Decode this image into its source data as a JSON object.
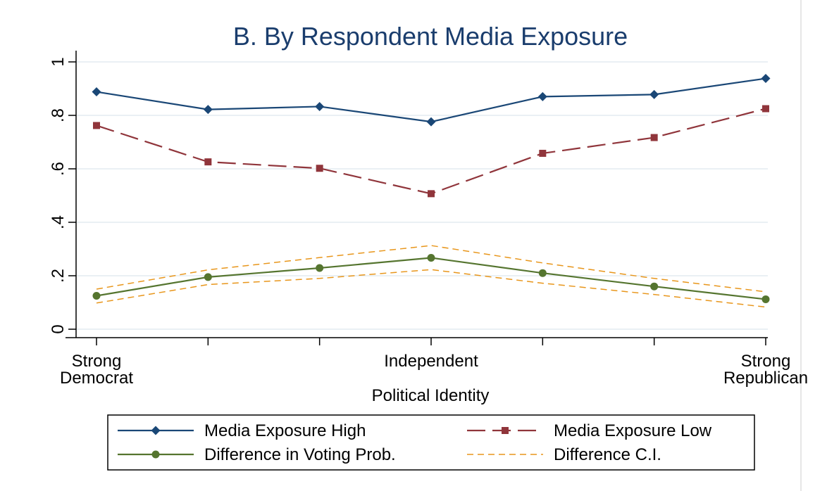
{
  "chart_data": {
    "type": "line",
    "title": "B. By Respondent Media Exposure",
    "xlabel": "Political Identity",
    "ylabel": "",
    "x": [
      1,
      2,
      3,
      4,
      5,
      6,
      7
    ],
    "xlim": [
      1,
      7
    ],
    "x_tick_labels": [
      {
        "x": 1,
        "lines": [
          "Strong",
          "Democrat"
        ]
      },
      {
        "x": 4,
        "lines": [
          "Independent"
        ]
      },
      {
        "x": 7,
        "lines": [
          "Strong",
          "Republican"
        ]
      }
    ],
    "ylim": [
      0,
      1
    ],
    "y_ticks": [
      0,
      0.2,
      0.4,
      0.6,
      0.8,
      1
    ],
    "y_tick_labels": [
      "0",
      ".2",
      ".4",
      ".6",
      ".8",
      "1"
    ],
    "grid": true,
    "legend_placement": "bottom",
    "series": [
      {
        "name": "Media Exposure High",
        "color": "#1a4776",
        "marker": "diamond",
        "dash": "solid",
        "values": [
          0.888,
          0.822,
          0.833,
          0.776,
          0.87,
          0.878,
          0.938
        ]
      },
      {
        "name": "Media Exposure Low",
        "color": "#90353b",
        "marker": "square",
        "dash": "long-dash",
        "values": [
          0.762,
          0.626,
          0.602,
          0.507,
          0.658,
          0.717,
          0.825
        ]
      },
      {
        "name": "Difference in Voting Prob.",
        "color": "#55752f",
        "marker": "circle",
        "dash": "solid",
        "values": [
          0.125,
          0.195,
          0.229,
          0.267,
          0.21,
          0.16,
          0.112
        ]
      },
      {
        "name": "Difference C.I.",
        "color": "#e8961b",
        "marker": "none",
        "dash": "short-dash",
        "values_upper": [
          0.15,
          0.222,
          0.268,
          0.313,
          0.248,
          0.19,
          0.14
        ],
        "values_lower": [
          0.098,
          0.167,
          0.19,
          0.223,
          0.172,
          0.13,
          0.083
        ]
      }
    ]
  }
}
